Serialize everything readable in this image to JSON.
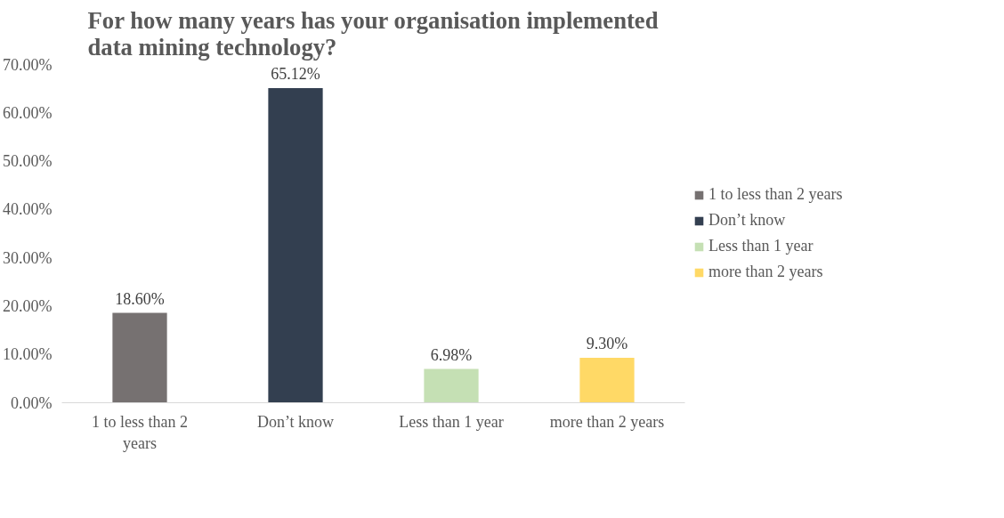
{
  "chart_data": {
    "type": "bar",
    "title": "For how many years has your organisation implemented data mining technology?",
    "categories": [
      "1 to less than 2 years",
      "Don’t know",
      "Less than 1 year",
      "more than 2 years"
    ],
    "series": [
      {
        "name": "1 to less than 2 years",
        "color": "#767171",
        "values": [
          18.6,
          null,
          null,
          null
        ],
        "value_labels": [
          "18.60%",
          null,
          null,
          null
        ]
      },
      {
        "name": "Don’t know",
        "color": "#333f50",
        "values": [
          null,
          65.12,
          null,
          null
        ],
        "value_labels": [
          null,
          "65.12%",
          null,
          null
        ]
      },
      {
        "name": "Less than 1 year",
        "color": "#c5e0b4",
        "values": [
          null,
          null,
          6.98,
          null
        ],
        "value_labels": [
          null,
          null,
          "6.98%",
          null
        ]
      },
      {
        "name": "more than 2 years",
        "color": "#ffd966",
        "values": [
          null,
          null,
          null,
          9.3
        ],
        "value_labels": [
          null,
          null,
          null,
          "9.30%"
        ]
      }
    ],
    "ylim": [
      0,
      70
    ],
    "yticks": [
      {
        "value": 0,
        "label": "0.00%"
      },
      {
        "value": 10,
        "label": "10.00%"
      },
      {
        "value": 20,
        "label": "20.00%"
      },
      {
        "value": 30,
        "label": "30.00%"
      },
      {
        "value": 40,
        "label": "40.00%"
      },
      {
        "value": 50,
        "label": "50.00%"
      },
      {
        "value": 60,
        "label": "60.00%"
      },
      {
        "value": 70,
        "label": "70.00%"
      }
    ],
    "grid": false,
    "legend": "right"
  }
}
